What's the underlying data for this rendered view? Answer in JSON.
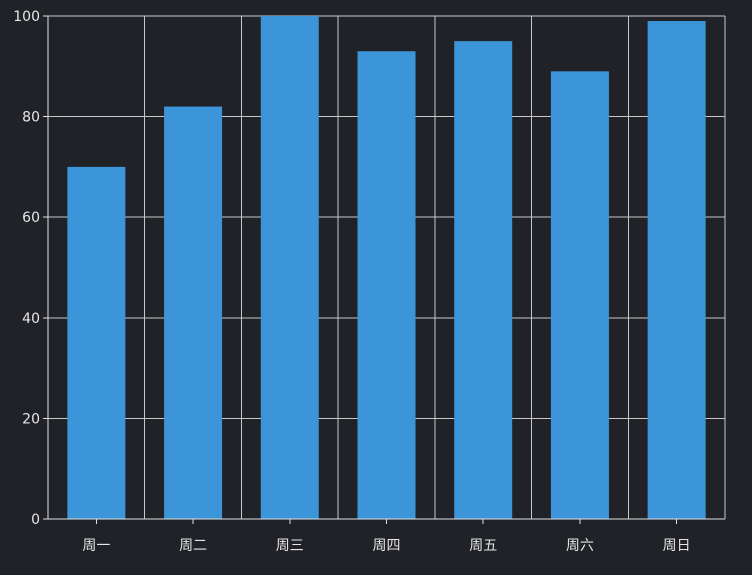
{
  "chart_data": {
    "type": "bar",
    "categories": [
      "周一",
      "周二",
      "周三",
      "周四",
      "周五",
      "周六",
      "周日"
    ],
    "values": [
      70,
      82,
      100,
      93,
      95,
      89,
      99
    ],
    "ylim": [
      0,
      100
    ],
    "yticks": [
      "0",
      "20",
      "40",
      "60",
      "80",
      "100"
    ],
    "title": "",
    "xlabel": "",
    "ylabel": "",
    "grid": true,
    "colors": {
      "background": "#202228",
      "bar": "#3c95d8",
      "grid": "#c8c8c8",
      "axis": "#e0e0e0",
      "text": "#e6e6e6"
    }
  }
}
